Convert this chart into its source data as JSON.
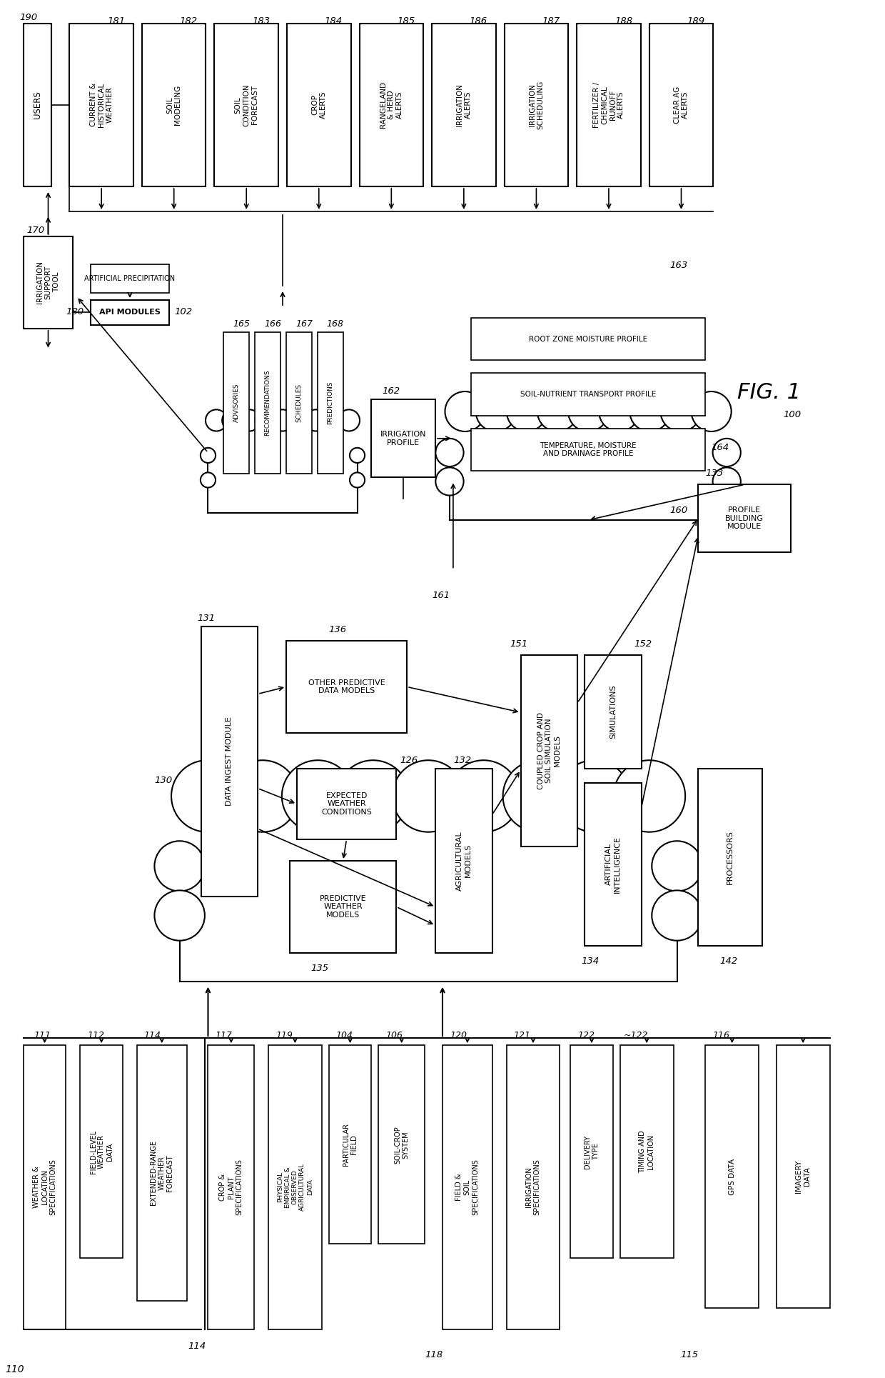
{
  "fig_title": "FIG. 1",
  "fig_label": "100",
  "top_boxes": [
    {
      "label": "181",
      "text": "CURRENT &\nHISTORICAL\nWEATHER"
    },
    {
      "label": "182",
      "text": "SOIL\nMODELING"
    },
    {
      "label": "183",
      "text": "SOIL\nCONDITION\nFORECAST"
    },
    {
      "label": "184",
      "text": "CROP\nALERTS"
    },
    {
      "label": "185",
      "text": "RANGELAND\n& HERD\nALERTS"
    },
    {
      "label": "186",
      "text": "IRRIGATION\nALERTS"
    },
    {
      "label": "187",
      "text": "IRRIGATION\nSCHEDULING"
    },
    {
      "label": "188",
      "text": "FERTILIZER /\nCHEMICAL\nRUNOFF\nALERTS"
    },
    {
      "label": "189",
      "text": "CLEAR AG\nALERTS"
    }
  ],
  "users_label": "190",
  "users_text": "USERS",
  "bottom_boxes": [
    {
      "label": "111",
      "text": "WEATHER &\nLOCATION\nSPECIFICATIONS",
      "group": "110"
    },
    {
      "label": "112",
      "text": "FIELD-LEVEL\nWEATHER\nDATA"
    },
    {
      "label": "114",
      "text": "EXTENDED-RANGE\nWEATHER\nFORECAST"
    },
    {
      "label": "117",
      "text": "CROP &\nPLANT\nSPECIFICATIONS",
      "group": ""
    },
    {
      "label": "119",
      "text": "PHYSICAL\nEMPIRICAL &\nOBSERVED\nAGRICULTURAL\nDATA"
    },
    {
      "label": "104",
      "text": "PARTICULAR\nFIELD"
    },
    {
      "label": "106",
      "text": "SOIL-CROP\nSYSTEM"
    },
    {
      "label": "120",
      "text": "FIELD &\nSOIL\nSPECIFICATIONS",
      "group": ""
    },
    {
      "label": "121",
      "text": "IRRIGATION\nSPECIFICATIONS"
    },
    {
      "label": "122",
      "text": "DELIVERY\nTYPE"
    },
    {
      "label": "~122",
      "text": "TIMING AND\nLOCATION"
    },
    {
      "label": "115",
      "text": "",
      "group": ""
    },
    {
      "label": "116",
      "text": "GPS DATA"
    },
    {
      "label": "",
      "text": "IMAGERY\nDATA"
    }
  ],
  "middle_cloud_label": "130",
  "data_ingest_label": "131",
  "pred_weather_label": "135",
  "exp_weather_label": "126",
  "other_pred_label": "136",
  "ag_models_label": "132",
  "coupled_label": "151",
  "simulations_label": "152",
  "ai_label": "134",
  "processors_label": "142",
  "profile_building_label": "133",
  "profile_cloud_label": "160",
  "irr_profile_label": "162",
  "arrow161_label": "161",
  "profile_group_label": "163",
  "tmd_label": "164",
  "output_cloud_label": "180",
  "adv_label": "165",
  "rec_label": "166",
  "sch_label": "167",
  "pred_label": "168",
  "ist_label": "170",
  "api_label": "102",
  "fig_number_label": "100"
}
